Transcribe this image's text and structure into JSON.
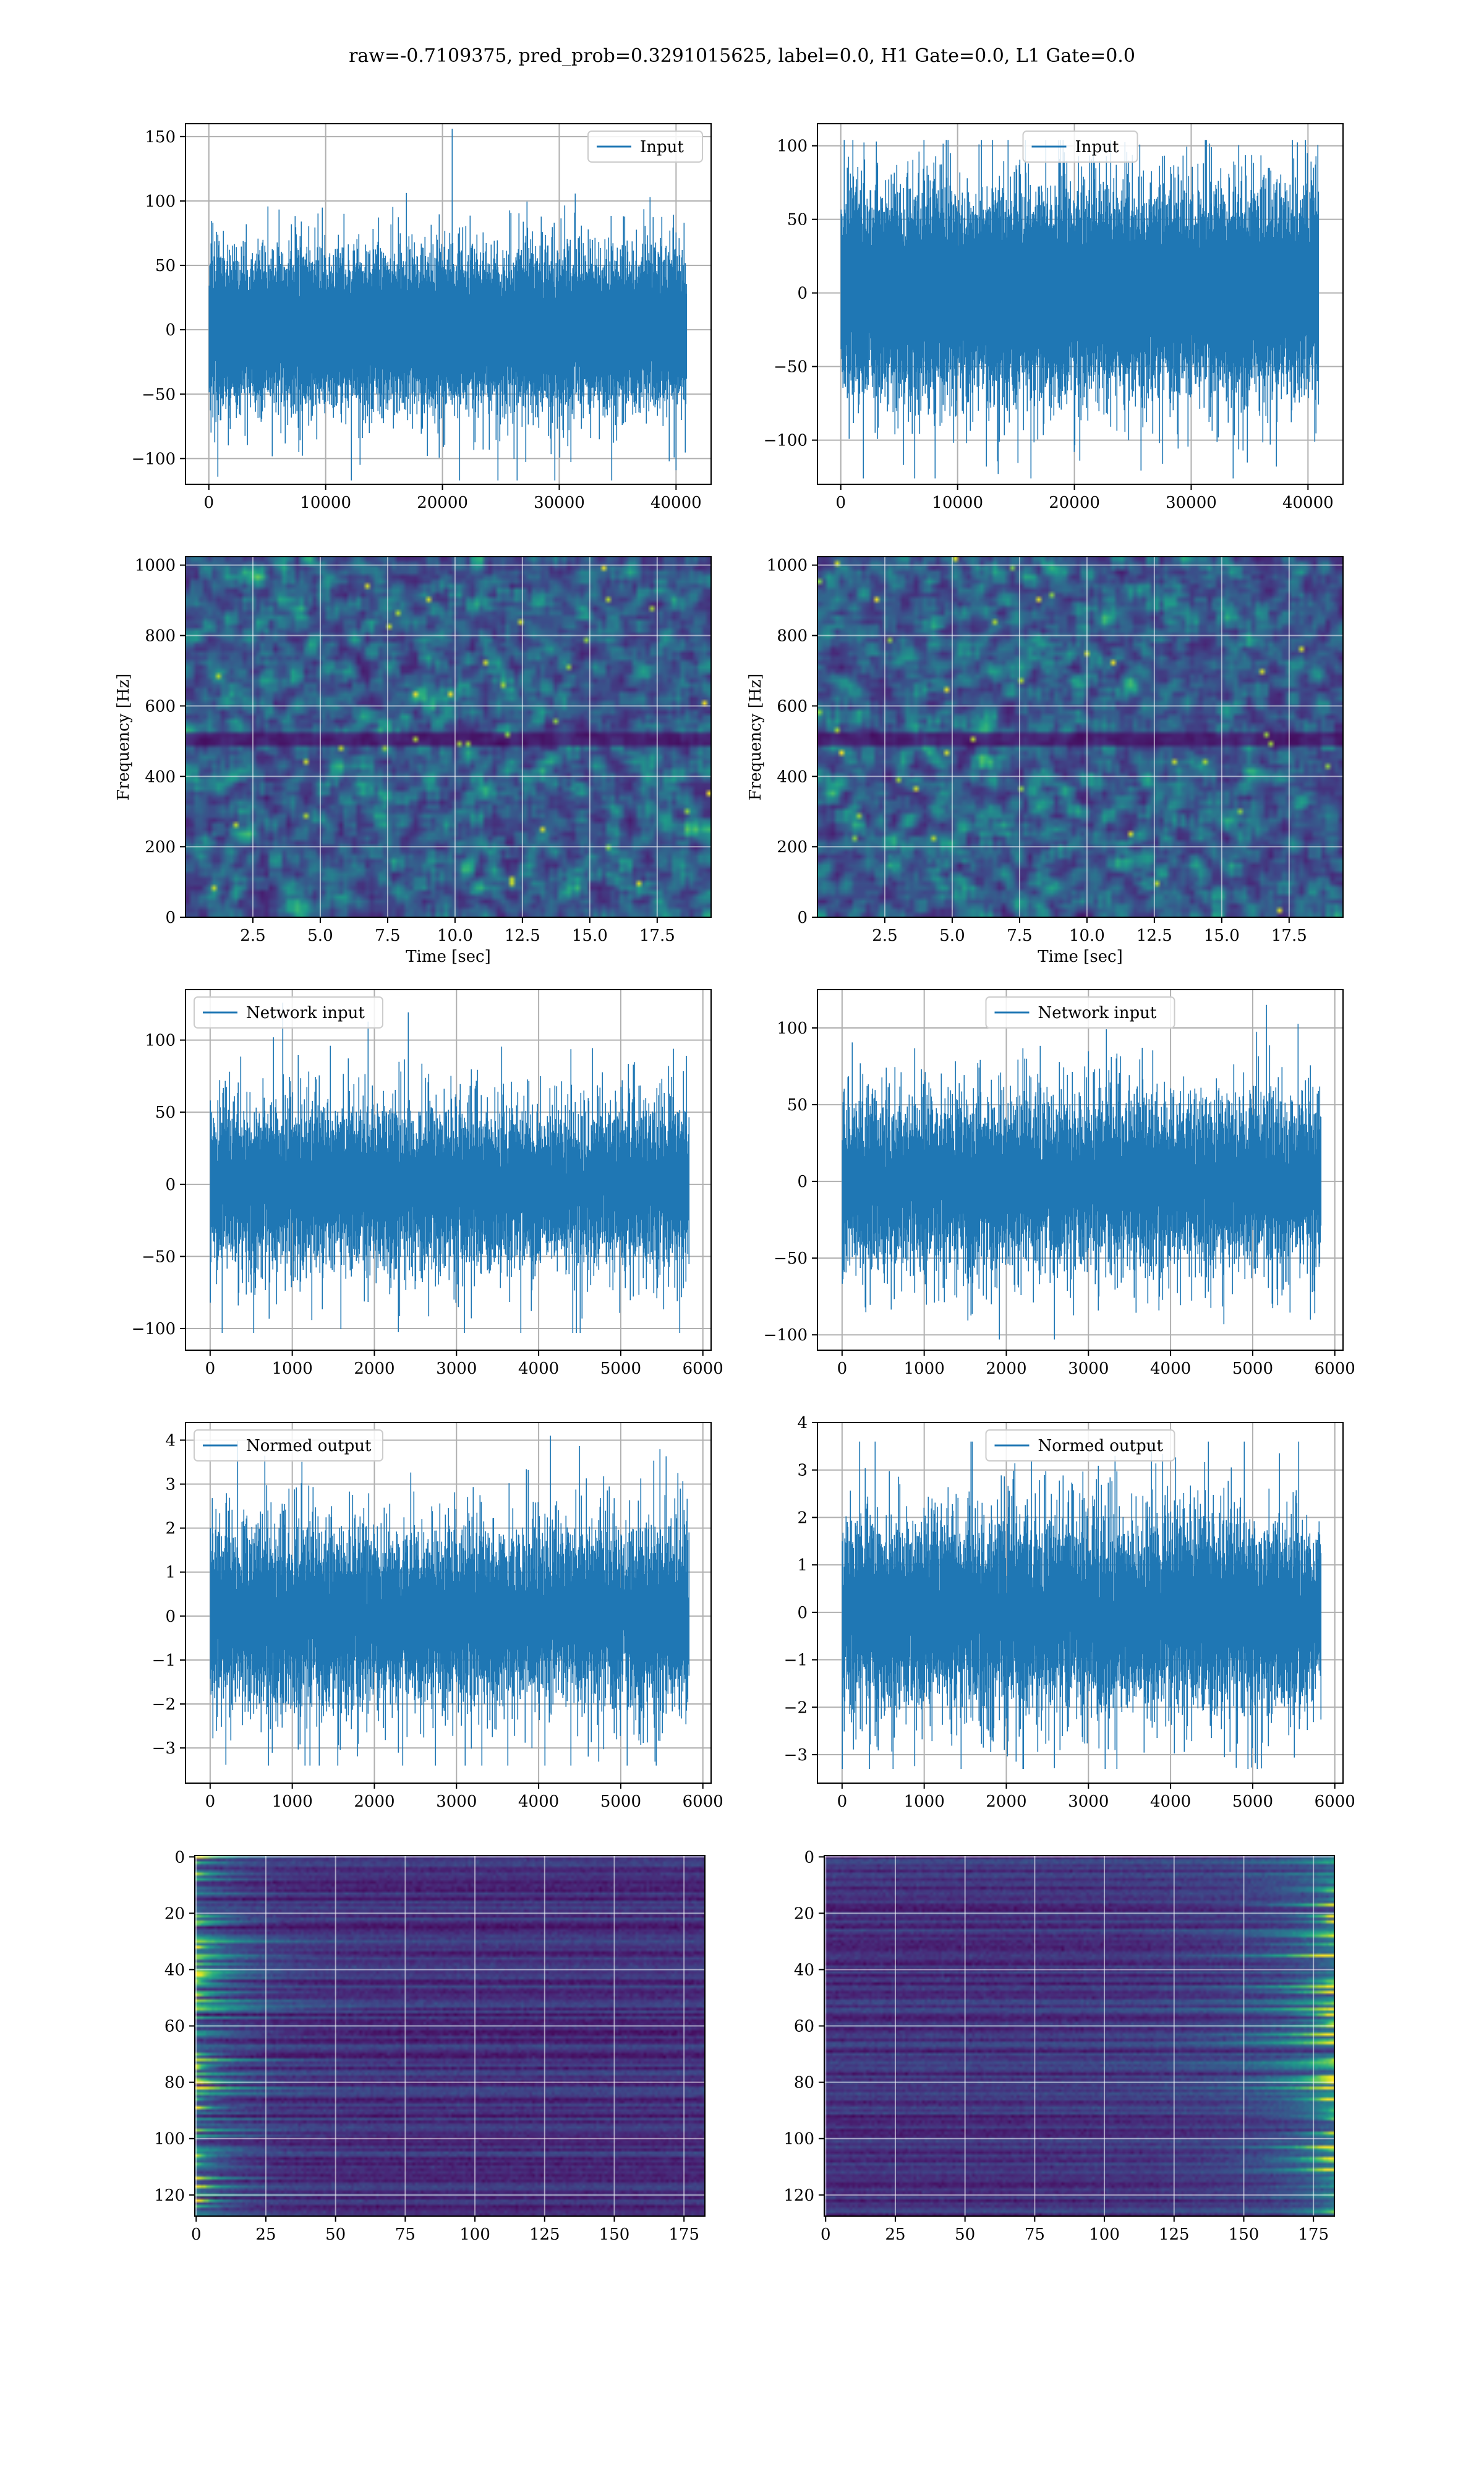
{
  "figure_title": "raw=-0.7109375, pred_prob=0.3291015625, label=0.0, H1 Gate=0.0, L1 Gate=0.0",
  "colors": {
    "series": "#1f77b4",
    "grid": "#b0b0b0",
    "viridis_dark": "#440154",
    "viridis_mid": "#3b528b",
    "viridis_teal": "#21918c",
    "viridis_green": "#5ec962",
    "viridis_yellow": "#fde725"
  },
  "chart_data": [
    {
      "id": "h1-input",
      "type": "line",
      "legend": "Input",
      "legend_loc": "upper right",
      "xlim": [
        -2000,
        43000
      ],
      "ylim": [
        -120,
        160
      ],
      "n": 40960,
      "sigma": 22,
      "xticks": [
        0,
        10000,
        20000,
        30000,
        40000
      ],
      "xtick_labels": [
        "0",
        "10000",
        "20000",
        "30000",
        "40000"
      ],
      "yticks": [
        -100,
        -50,
        0,
        50,
        100,
        150
      ],
      "ytick_labels": [
        "−100",
        "−50",
        "0",
        "50",
        "100",
        "150"
      ],
      "peak_max": 156,
      "peak_min": -117
    },
    {
      "id": "l1-input",
      "type": "line",
      "legend": "Input",
      "legend_loc": "upper center",
      "xlim": [
        -2000,
        43000
      ],
      "ylim": [
        -130,
        115
      ],
      "n": 40960,
      "sigma": 25,
      "xticks": [
        0,
        10000,
        20000,
        30000,
        40000
      ],
      "xtick_labels": [
        "0",
        "10000",
        "20000",
        "30000",
        "40000"
      ],
      "yticks": [
        -100,
        -50,
        0,
        50,
        100
      ],
      "ytick_labels": [
        "−100",
        "−50",
        "0",
        "50",
        "100"
      ],
      "peak_max": 104,
      "peak_min": -126
    },
    {
      "id": "h1-spectrogram",
      "type": "heatmap",
      "colormap": "viridis",
      "xlim": [
        0,
        19.5
      ],
      "ylim": [
        0,
        1024
      ],
      "xticks": [
        2.5,
        5.0,
        7.5,
        10.0,
        12.5,
        15.0,
        17.5
      ],
      "xtick_labels": [
        "2.5",
        "5.0",
        "7.5",
        "10.0",
        "12.5",
        "15.0",
        "17.5"
      ],
      "yticks": [
        0,
        200,
        400,
        600,
        800,
        1000
      ],
      "ytick_labels": [
        "0",
        "200",
        "400",
        "600",
        "800",
        "1000"
      ],
      "xlabel": "Time [sec]",
      "ylabel": "Frequency [Hz]",
      "dark_band_hz": [
        480,
        520
      ]
    },
    {
      "id": "l1-spectrogram",
      "type": "heatmap",
      "colormap": "viridis",
      "xlim": [
        0,
        19.5
      ],
      "ylim": [
        0,
        1024
      ],
      "xticks": [
        2.5,
        5.0,
        7.5,
        10.0,
        12.5,
        15.0,
        17.5
      ],
      "xtick_labels": [
        "2.5",
        "5.0",
        "7.5",
        "10.0",
        "12.5",
        "15.0",
        "17.5"
      ],
      "yticks": [
        0,
        200,
        400,
        600,
        800,
        1000
      ],
      "ytick_labels": [
        "0",
        "200",
        "400",
        "600",
        "800",
        "1000"
      ],
      "xlabel": "Time [sec]",
      "ylabel": "Frequency [Hz]",
      "dark_band_hz": [
        480,
        520
      ]
    },
    {
      "id": "h1-network-input",
      "type": "line",
      "legend": "Network input",
      "legend_loc": "upper left",
      "xlim": [
        -300,
        6100
      ],
      "ylim": [
        -115,
        135
      ],
      "n": 5840,
      "sigma": 22,
      "xticks": [
        0,
        1000,
        2000,
        3000,
        4000,
        5000,
        6000
      ],
      "xtick_labels": [
        "0",
        "1000",
        "2000",
        "3000",
        "4000",
        "5000",
        "6000"
      ],
      "yticks": [
        -100,
        -50,
        0,
        50,
        100
      ],
      "ytick_labels": [
        "−100",
        "−50",
        "0",
        "50",
        "100"
      ],
      "peak_max": 126,
      "peak_min": -103
    },
    {
      "id": "l1-network-input",
      "type": "line",
      "legend": "Network input",
      "legend_loc": "upper center",
      "xlim": [
        -300,
        6100
      ],
      "ylim": [
        -110,
        125
      ],
      "n": 5840,
      "sigma": 22,
      "xticks": [
        0,
        1000,
        2000,
        3000,
        4000,
        5000,
        6000
      ],
      "xtick_labels": [
        "0",
        "1000",
        "2000",
        "3000",
        "4000",
        "5000",
        "6000"
      ],
      "yticks": [
        -100,
        -50,
        0,
        50,
        100
      ],
      "ytick_labels": [
        "−100",
        "−50",
        "0",
        "50",
        "100"
      ],
      "peak_max": 115,
      "peak_min": -103
    },
    {
      "id": "h1-normed-output",
      "type": "line",
      "legend": "Normed output",
      "legend_loc": "upper left",
      "xlim": [
        -300,
        6100
      ],
      "ylim": [
        -3.8,
        4.4
      ],
      "n": 5840,
      "sigma": 0.8,
      "xticks": [
        0,
        1000,
        2000,
        3000,
        4000,
        5000,
        6000
      ],
      "xtick_labels": [
        "0",
        "1000",
        "2000",
        "3000",
        "4000",
        "5000",
        "6000"
      ],
      "yticks": [
        -3,
        -2,
        -1,
        0,
        1,
        2,
        3,
        4
      ],
      "ytick_labels": [
        "−3",
        "−2",
        "−1",
        "0",
        "1",
        "2",
        "3",
        "4"
      ],
      "peak_max": 4.1,
      "peak_min": -3.4
    },
    {
      "id": "l1-normed-output",
      "type": "line",
      "legend": "Normed output",
      "legend_loc": "upper center",
      "xlim": [
        -300,
        6100
      ],
      "ylim": [
        -3.6,
        4.0
      ],
      "n": 5840,
      "sigma": 0.8,
      "xticks": [
        0,
        1000,
        2000,
        3000,
        4000,
        5000,
        6000
      ],
      "xtick_labels": [
        "0",
        "1000",
        "2000",
        "3000",
        "4000",
        "5000",
        "6000"
      ],
      "yticks": [
        -3,
        -2,
        -1,
        0,
        1,
        2,
        3,
        4
      ],
      "ytick_labels": [
        "−3",
        "−2",
        "−1",
        "0",
        "1",
        "2",
        "3",
        "4"
      ],
      "peak_max": 3.6,
      "peak_min": -3.3
    },
    {
      "id": "h1-feature-map",
      "type": "heatmap",
      "colormap": "viridis",
      "xlim": [
        -0.5,
        182.5
      ],
      "ylim": [
        127.5,
        -0.5
      ],
      "rows": 128,
      "cols": 183,
      "xticks": [
        0,
        25,
        50,
        75,
        100,
        125,
        150,
        175
      ],
      "xtick_labels": [
        "0",
        "25",
        "50",
        "75",
        "100",
        "125",
        "150",
        "175"
      ],
      "yticks": [
        0,
        20,
        40,
        60,
        80,
        100,
        120
      ],
      "ytick_labels": [
        "0",
        "20",
        "40",
        "60",
        "80",
        "100",
        "120"
      ],
      "activation_edge": "left"
    },
    {
      "id": "l1-feature-map",
      "type": "heatmap",
      "colormap": "viridis",
      "xlim": [
        -0.5,
        182.5
      ],
      "ylim": [
        127.5,
        -0.5
      ],
      "rows": 128,
      "cols": 183,
      "xticks": [
        0,
        25,
        50,
        75,
        100,
        125,
        150,
        175
      ],
      "xtick_labels": [
        "0",
        "25",
        "50",
        "75",
        "100",
        "125",
        "150",
        "175"
      ],
      "yticks": [
        0,
        20,
        40,
        60,
        80,
        100,
        120
      ],
      "ytick_labels": [
        "0",
        "20",
        "40",
        "60",
        "80",
        "100",
        "120"
      ],
      "activation_edge": "right"
    }
  ]
}
